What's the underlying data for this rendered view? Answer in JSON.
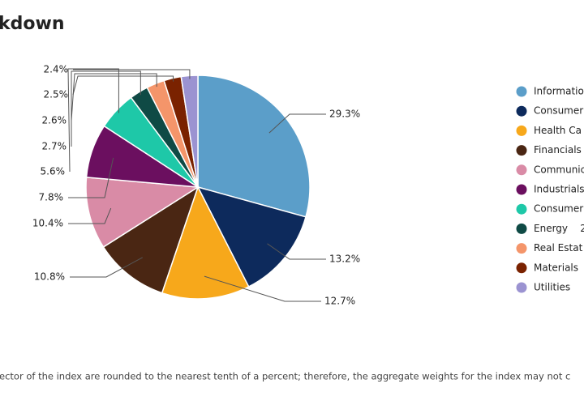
{
  "chart_data": {
    "type": "pie",
    "title": "kdown",
    "categories": [
      "Informatio",
      "Consumer",
      "Health Ca",
      "Financials",
      "Communic",
      "Industrials",
      "Consumer",
      "Energy    2",
      "Real Estat",
      "Materials",
      "Utilities"
    ],
    "values": [
      29.3,
      13.2,
      12.7,
      10.8,
      10.4,
      7.8,
      5.6,
      2.7,
      2.6,
      2.5,
      2.4
    ],
    "value_labels": [
      "29.3%",
      "13.2%",
      "12.7%",
      "10.8%",
      "10.4%",
      "7.8%",
      "5.6%",
      "2.7%",
      "2.6%",
      "2.5%",
      "2.4%"
    ],
    "colors": [
      "#5b9ec9",
      "#0d2a5c",
      "#f7a81b",
      "#4a2613",
      "#d98ba6",
      "#6b0f5f",
      "#1ec8a8",
      "#0f4a45",
      "#f4956a",
      "#7a2200",
      "#9b93d1"
    ],
    "footnote": "ector of the index are rounded to the nearest tenth of a percent; therefore, the aggregate weights for the index may not c"
  }
}
